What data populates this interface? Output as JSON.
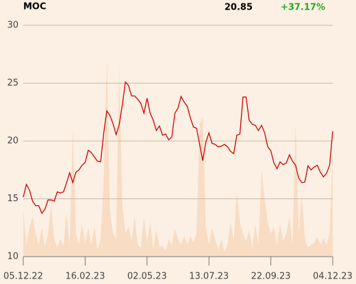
{
  "chart_data": {
    "type": "line",
    "title": "MOC",
    "last_price": 20.85,
    "change": "+37.17%",
    "categories": [
      "05.12.22",
      null,
      null,
      null,
      null,
      null,
      null,
      null,
      null,
      null,
      null,
      null,
      null,
      null,
      null,
      null,
      null,
      null,
      null,
      null,
      "16.02.23",
      null,
      null,
      null,
      null,
      null,
      null,
      null,
      null,
      null,
      null,
      null,
      null,
      null,
      null,
      null,
      null,
      null,
      null,
      null,
      "02.05.23",
      null,
      null,
      null,
      null,
      null,
      null,
      null,
      null,
      null,
      null,
      null,
      null,
      null,
      null,
      null,
      null,
      null,
      null,
      null,
      "13.07.23",
      null,
      null,
      null,
      null,
      null,
      null,
      null,
      null,
      null,
      null,
      null,
      null,
      null,
      null,
      null,
      null,
      null,
      null,
      null,
      "22.09.23",
      null,
      null,
      null,
      null,
      null,
      null,
      null,
      null,
      null,
      null,
      null,
      null,
      null,
      null,
      null,
      null,
      null,
      null,
      null,
      "04.12.23"
    ],
    "values": [
      15.15,
      16.25,
      15.75,
      14.8,
      14.4,
      14.4,
      13.75,
      14.1,
      14.9,
      14.9,
      14.8,
      15.6,
      15.5,
      15.6,
      16.4,
      17.25,
      16.4,
      17.3,
      17.5,
      17.9,
      18.15,
      19.2,
      19.0,
      18.6,
      18.25,
      18.2,
      20.7,
      22.6,
      22.2,
      21.5,
      20.55,
      21.4,
      23.1,
      25.1,
      24.8,
      23.9,
      23.9,
      23.6,
      23.25,
      22.4,
      23.7,
      22.4,
      21.8,
      20.9,
      21.3,
      20.5,
      20.6,
      20.1,
      20.35,
      22.4,
      22.85,
      23.85,
      23.35,
      23.0,
      22.0,
      21.2,
      21.1,
      19.7,
      18.3,
      19.9,
      20.7,
      19.8,
      19.7,
      19.5,
      19.55,
      19.7,
      19.5,
      19.1,
      18.9,
      20.5,
      20.6,
      23.8,
      23.8,
      21.8,
      21.45,
      21.35,
      20.9,
      21.35,
      20.7,
      19.5,
      19.15,
      18.1,
      17.6,
      18.2,
      17.95,
      18.1,
      18.8,
      18.25,
      17.9,
      16.8,
      16.4,
      16.45,
      17.85,
      17.5,
      17.75,
      17.9,
      17.3,
      16.9,
      17.2,
      17.9,
      20.85
    ],
    "color": "#cc0000",
    "volume_values": [
      14,
      11,
      12.5,
      13.5,
      12,
      11,
      12.5,
      10.8,
      12,
      14.5,
      11.5,
      10.8,
      11.5,
      11,
      13.8,
      11,
      21,
      12,
      11,
      12.8,
      11.2,
      12.5,
      11,
      12.6,
      10.6,
      11.5,
      16.5,
      27,
      14,
      12,
      11.5,
      26.5,
      14.5,
      12,
      12.6,
      11.3,
      13.4,
      11,
      10.8,
      13.4,
      11.2,
      13,
      10.6,
      12.3,
      10.8,
      11,
      10.5,
      11.5,
      11,
      12.4,
      11.5,
      11,
      11.8,
      11,
      11.8,
      11.2,
      12,
      21.5,
      22,
      12.6,
      11,
      12.5,
      11.5,
      10.6,
      11.5,
      10.4,
      11,
      13,
      11.3,
      15.5,
      13,
      12,
      11.3,
      12.3,
      10.8,
      12.8,
      11,
      17.5,
      15,
      13,
      12,
      12.6,
      11,
      12.8,
      11.4,
      12,
      13.5,
      11,
      21.5,
      12,
      15.5,
      11.5,
      10.8,
      11,
      11.2,
      11.7,
      11,
      11.6,
      11,
      12,
      19
    ],
    "volume_color": "#f8dcc4",
    "ylim": [
      10,
      30
    ],
    "yticks": [
      10,
      15,
      20,
      25,
      30
    ],
    "grid": true
  }
}
